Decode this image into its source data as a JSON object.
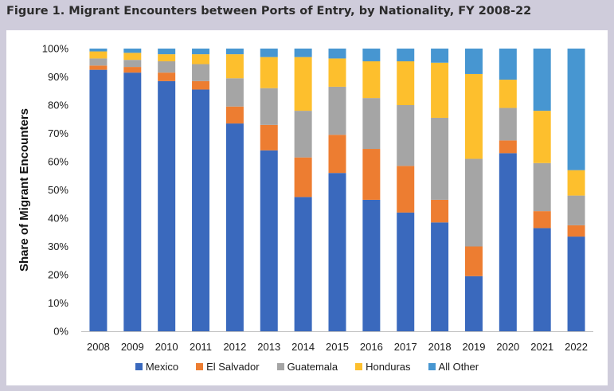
{
  "figure_title": "Figure 1. Migrant Encounters between Ports of Entry, by Nationality, FY 2008-22",
  "chart_data": {
    "type": "bar",
    "stacked": true,
    "percent": true,
    "ylabel": "Share of Migrant Encounters",
    "ylim": [
      0,
      100
    ],
    "y_ticks": [
      "0%",
      "10%",
      "20%",
      "30%",
      "40%",
      "50%",
      "60%",
      "70%",
      "80%",
      "90%",
      "100%"
    ],
    "categories": [
      "2008",
      "2009",
      "2010",
      "2011",
      "2012",
      "2013",
      "2014",
      "2015",
      "2016",
      "2017",
      "2018",
      "2019",
      "2020",
      "2021",
      "2022"
    ],
    "series": [
      {
        "name": "Mexico",
        "color": "#3a69bd",
        "values": [
          92.5,
          91.5,
          88.5,
          85.5,
          73.5,
          64.0,
          47.5,
          56.0,
          46.5,
          42.0,
          38.5,
          19.5,
          63.0,
          36.5,
          33.5
        ]
      },
      {
        "name": "El Salvador",
        "color": "#ed7d31",
        "values": [
          1.5,
          2.0,
          3.0,
          3.0,
          6.0,
          9.0,
          14.0,
          13.5,
          18.0,
          16.5,
          8.0,
          10.5,
          4.5,
          6.0,
          4.0
        ]
      },
      {
        "name": "Guatemala",
        "color": "#a5a5a5",
        "values": [
          2.5,
          2.5,
          4.0,
          6.0,
          10.0,
          13.0,
          16.5,
          17.0,
          18.0,
          21.5,
          29.0,
          31.0,
          11.5,
          17.0,
          10.5
        ]
      },
      {
        "name": "Honduras",
        "color": "#fdbf2d",
        "values": [
          2.5,
          2.5,
          2.5,
          3.5,
          8.5,
          11.0,
          19.0,
          10.0,
          13.0,
          15.5,
          19.5,
          30.0,
          10.0,
          18.5,
          9.0
        ]
      },
      {
        "name": "All Other",
        "color": "#4796d1",
        "values": [
          1.0,
          1.5,
          2.0,
          2.0,
          2.0,
          3.0,
          3.0,
          3.5,
          4.5,
          4.5,
          5.0,
          9.0,
          11.0,
          22.0,
          43.0
        ]
      }
    ],
    "legend_position": "bottom",
    "grid": false
  }
}
